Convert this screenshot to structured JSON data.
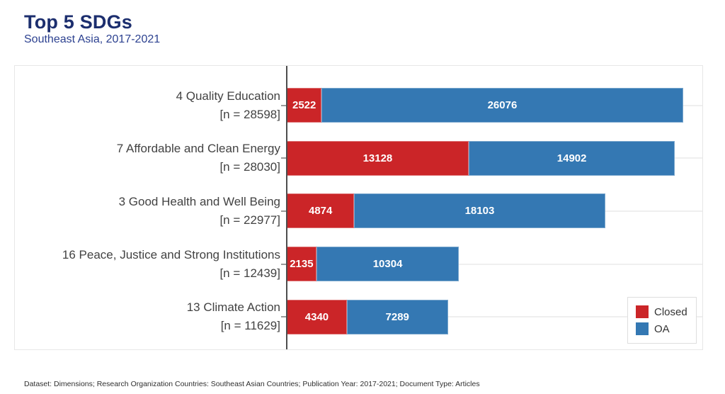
{
  "header": {
    "title": "Top 5 SDGs",
    "subtitle": "Southeast Asia, 2017-2021"
  },
  "legend": {
    "items": [
      {
        "label": "Closed",
        "color": "#cb2528"
      },
      {
        "label": "OA",
        "color": "#3478b3"
      }
    ]
  },
  "footer": {
    "caption": "Dataset: Dimensions; Research Organization Countries: Southeast Asian Countries; Publication Year: 2017-2021; Document Type: Articles"
  },
  "chart_data": {
    "type": "bar",
    "orientation": "horizontal",
    "stacked": true,
    "title": "Top 5 SDGs",
    "subtitle": "Southeast Asia, 2017-2021",
    "categories": [
      "4 Quality Education",
      "7 Affordable and Clean Energy",
      "3 Good Health and Well Being",
      "16 Peace, Justice and Strong Institutions",
      "13 Climate Action"
    ],
    "category_sublabels": [
      "[n = 28598]",
      "[n = 28030]",
      "[n = 22977]",
      "[n = 12439]",
      "[n = 11629]"
    ],
    "totals": [
      28598,
      28030,
      22977,
      12439,
      11629
    ],
    "series": [
      {
        "name": "Closed",
        "color": "#cb2528",
        "values": [
          2522,
          13128,
          4874,
          2135,
          4340
        ]
      },
      {
        "name": "OA",
        "color": "#3478b3",
        "values": [
          26076,
          14902,
          18103,
          10304,
          7289
        ]
      }
    ],
    "xlim": [
      0,
      30000
    ],
    "grid": "horizontal-row-lines",
    "legend_position": "inside-bottom-right",
    "value_labels": "inside-white-bold"
  }
}
